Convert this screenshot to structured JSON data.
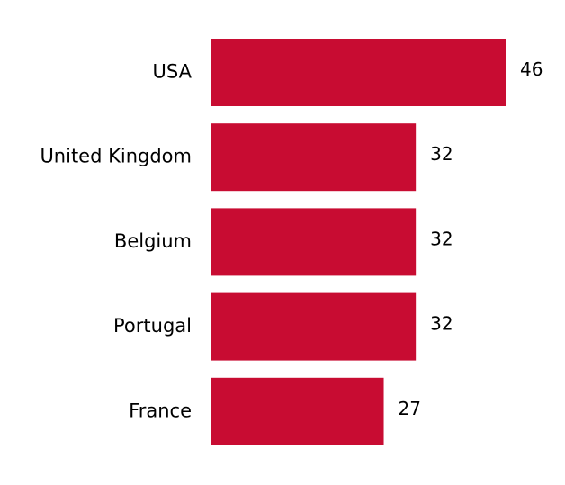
{
  "chart_data": {
    "type": "bar",
    "orientation": "horizontal",
    "categories": [
      "USA",
      "United Kingdom",
      "Belgium",
      "Portugal",
      "France"
    ],
    "values": [
      46,
      32,
      32,
      32,
      27
    ],
    "color": "#c80c32"
  }
}
